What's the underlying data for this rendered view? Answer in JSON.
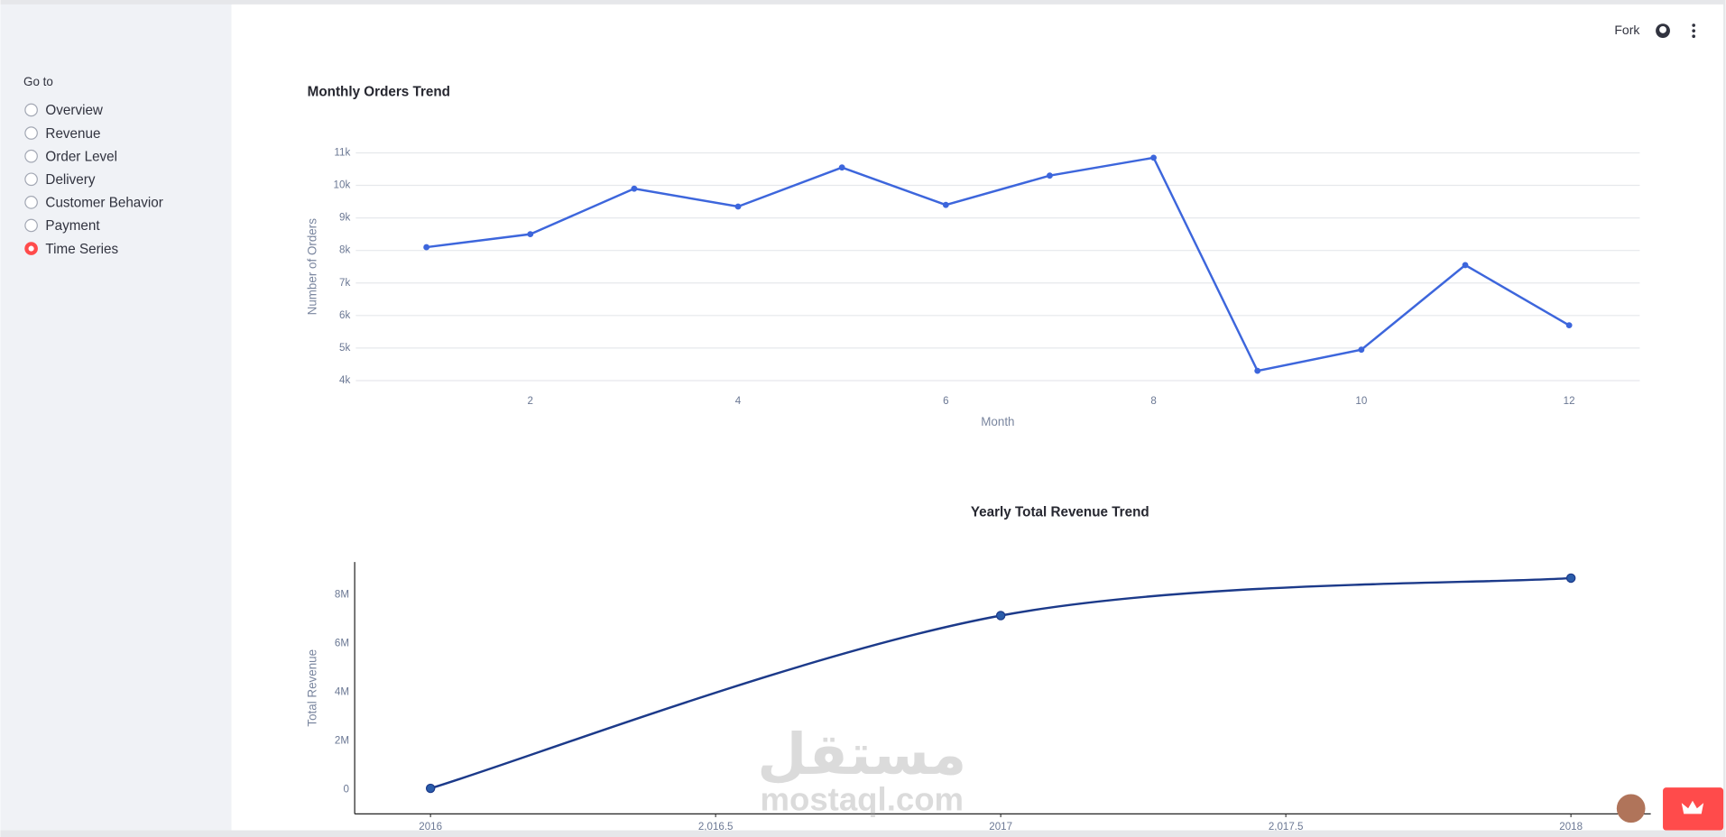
{
  "sidebar": {
    "label": "Go to",
    "options": [
      "Overview",
      "Revenue",
      "Order Level",
      "Delivery",
      "Customer Behavior",
      "Payment",
      "Time Series"
    ],
    "selected": 6
  },
  "toolbar": {
    "fork": "Fork"
  },
  "watermark": {
    "arabic": "مستقل",
    "latin": "mostaql.com"
  },
  "chart_data": [
    {
      "type": "line",
      "title": "Monthly Orders Trend",
      "x_label": "Month",
      "y_label": "Number of Orders",
      "x": [
        1,
        2,
        3,
        4,
        5,
        6,
        7,
        8,
        9,
        10,
        11,
        12
      ],
      "series": [
        {
          "name": "Orders",
          "color": "#3d66dc",
          "values": [
            8100,
            8500,
            9900,
            9350,
            10550,
            9400,
            10300,
            10850,
            4300,
            4950,
            7550,
            5700
          ]
        }
      ],
      "xlim": [
        0.32,
        12.68
      ],
      "xticks": [
        2,
        4,
        6,
        8,
        10,
        12
      ],
      "ylim": [
        3700,
        11300
      ],
      "yticks": [
        {
          "value": 4000,
          "label": "4k"
        },
        {
          "value": 5000,
          "label": "5k"
        },
        {
          "value": 6000,
          "label": "6k"
        },
        {
          "value": 7000,
          "label": "7k"
        },
        {
          "value": 8000,
          "label": "8k"
        },
        {
          "value": 9000,
          "label": "9k"
        },
        {
          "value": 10000,
          "label": "10k"
        },
        {
          "value": 11000,
          "label": "11k"
        }
      ],
      "grid": true,
      "axis_lines": false,
      "line_shape": "linear",
      "title_align": "left"
    },
    {
      "type": "line",
      "title": "Yearly Total Revenue Trend",
      "y_label": "Total Revenue",
      "x": [
        2016,
        2017,
        2018
      ],
      "series": [
        {
          "name": "Total Revenue",
          "color": "#1c3a8a",
          "marker_color": "#2a5caa",
          "values": [
            50000,
            7150000,
            8690000
          ]
        }
      ],
      "xlim": [
        2015.867,
        2018.14
      ],
      "xticks": [
        2016,
        {
          "value": 2016.5,
          "label": "2,016.5"
        },
        2017,
        {
          "value": 2017.5,
          "label": "2,017.5"
        },
        2018
      ],
      "ylim": [
        -1000000,
        9350000
      ],
      "yticks": [
        0,
        {
          "value": 2000000,
          "label": "2M"
        },
        {
          "value": 4000000,
          "label": "4M"
        },
        {
          "value": 6000000,
          "label": "6M"
        },
        {
          "value": 8000000,
          "label": "8M"
        }
      ],
      "grid": false,
      "axis_lines": true,
      "line_shape": "spline",
      "title_align": "center"
    }
  ]
}
